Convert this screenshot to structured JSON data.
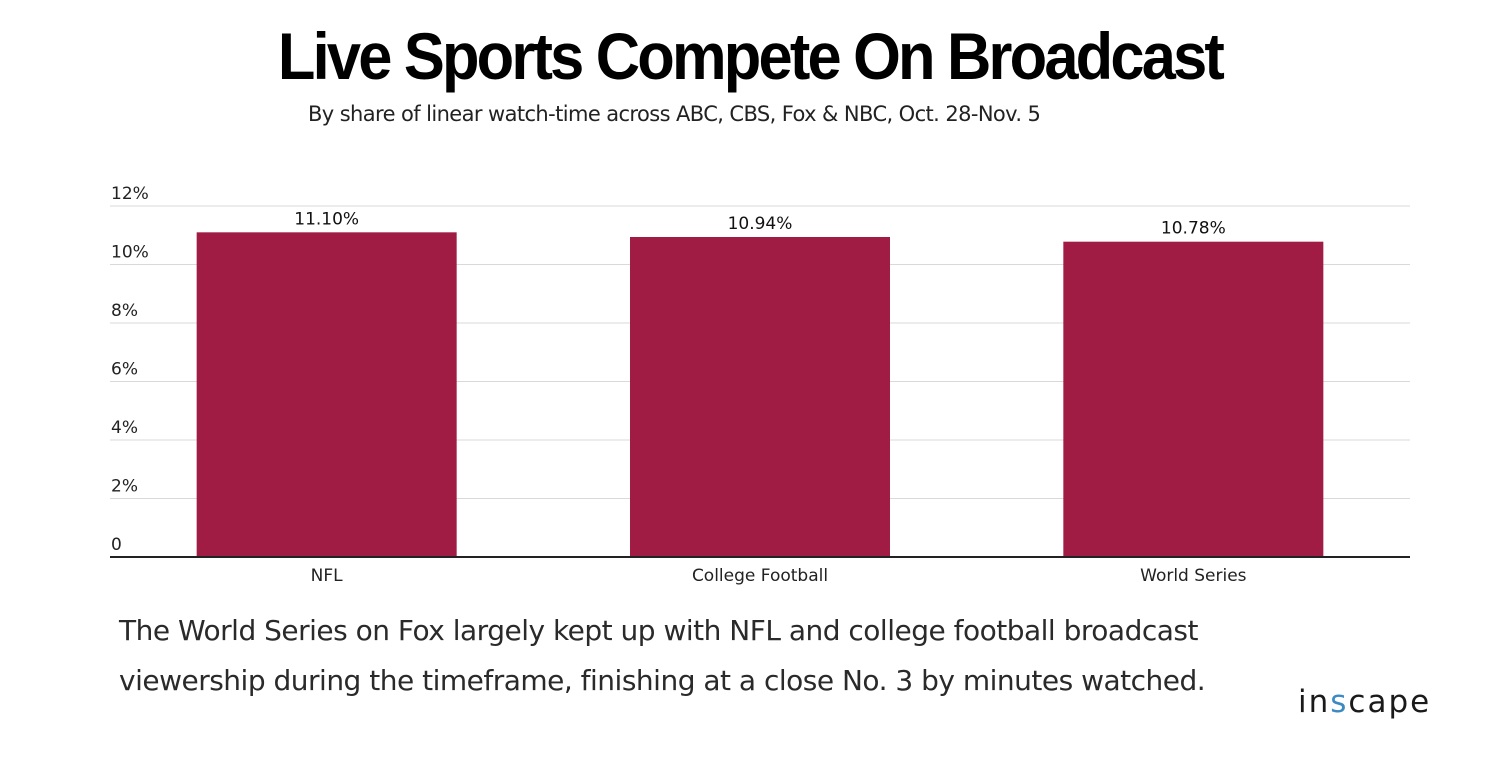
{
  "title": "Live Sports Compete On Broadcast",
  "subtitle": "By share of linear watch-time across ABC, CBS, Fox & NBC, Oct. 28-Nov. 5",
  "caption": "The World Series on Fox largely kept up with NFL and college football broadcast viewership during the timeframe, finishing at a close No. 3 by minutes watched.",
  "logo": {
    "prefix": "in",
    "accent": "s",
    "suffix": "cape",
    "accent_color": "#3c8ac4"
  },
  "chart_data": {
    "type": "bar",
    "categories": [
      "NFL",
      "College Football",
      "World Series"
    ],
    "values": [
      11.1,
      10.94,
      10.78
    ],
    "data_labels": [
      "11.10%",
      "10.94%",
      "10.78%"
    ],
    "yticks": [
      0,
      2,
      4,
      6,
      8,
      10,
      12
    ],
    "ytick_labels": [
      "0",
      "2%",
      "4%",
      "6%",
      "8%",
      "10%",
      "12%"
    ],
    "ylim": [
      0,
      12
    ],
    "grid": true,
    "bar_color": "#a01c44",
    "grid_color": "#d9d9d9",
    "axis_color": "#222222"
  }
}
